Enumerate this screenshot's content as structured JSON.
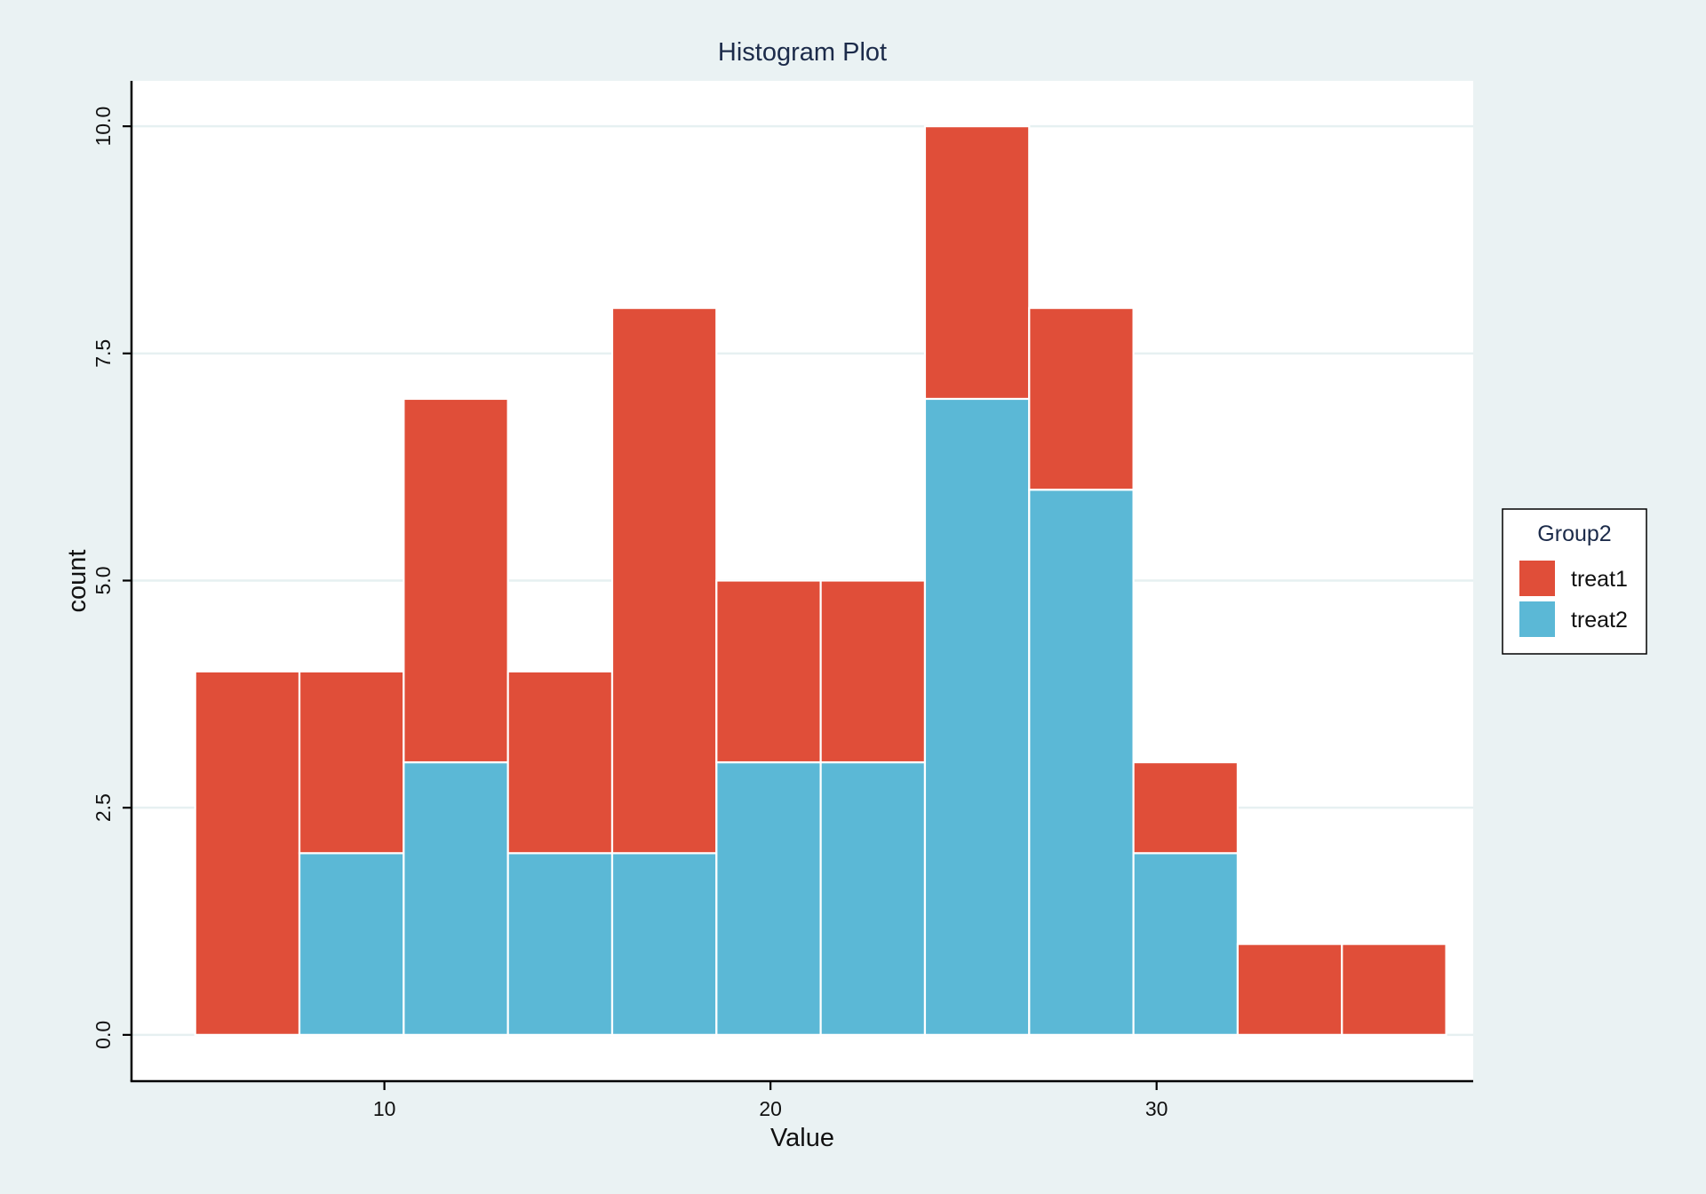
{
  "chart_data": {
    "type": "bar",
    "stacked": true,
    "title": "Histogram Plot",
    "xlabel": "Value",
    "ylabel": "count",
    "xlim": [
      3.45,
      38.2
    ],
    "ylim": [
      -0.5,
      10.5
    ],
    "x_ticks": [
      10,
      20,
      30
    ],
    "x_tick_labels": [
      "10",
      "20",
      "30"
    ],
    "y_ticks": [
      0,
      2.5,
      5,
      7.5,
      10
    ],
    "y_tick_labels": [
      "0.0",
      "2.5",
      "5.0",
      "7.5",
      "10.0"
    ],
    "grid": true,
    "bin_edges": [
      5.1,
      7.8,
      10.5,
      13.2,
      15.9,
      18.6,
      21.3,
      24.0,
      26.7,
      29.4,
      32.1,
      34.8,
      37.5
    ],
    "series": [
      {
        "name": "treat2",
        "color": "#5bb8d6",
        "values": [
          0,
          2,
          3,
          2,
          2,
          3,
          3,
          7,
          6,
          2,
          0,
          0
        ]
      },
      {
        "name": "treat1",
        "color": "#e04e39",
        "values": [
          4,
          2,
          4,
          2,
          6,
          2,
          2,
          3,
          2,
          1,
          1,
          1
        ]
      }
    ],
    "legend": {
      "title": "Group2",
      "placement": "right",
      "entries": [
        {
          "label": "treat1",
          "color": "#e04e39"
        },
        {
          "label": "treat2",
          "color": "#5bb8d6"
        }
      ]
    }
  }
}
